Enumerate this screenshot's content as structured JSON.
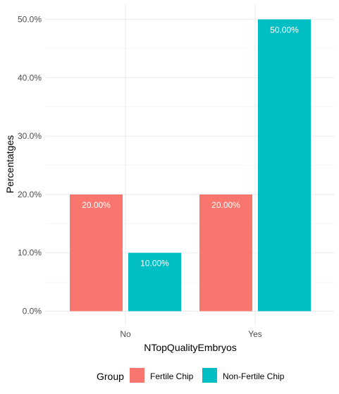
{
  "chart_data": {
    "type": "bar",
    "categories": [
      "No",
      "Yes"
    ],
    "series": [
      {
        "name": "Fertile Chip",
        "values": [
          20,
          20
        ],
        "labels": [
          "20.00%",
          "20.00%"
        ],
        "color": "#F8766D"
      },
      {
        "name": "Non-Fertile Chip",
        "values": [
          10,
          50
        ],
        "labels": [
          "10.00%",
          "50.00%"
        ],
        "color": "#00BFC4"
      }
    ],
    "xlabel": "NTopQualityEmbryos",
    "ylabel": "Percentatges",
    "ylim": [
      0,
      52.5
    ],
    "yticks": [
      0,
      10,
      20,
      30,
      40,
      50
    ],
    "ytick_labels": [
      "0.0%",
      "10.0%",
      "20.0%",
      "30.0%",
      "40.0%",
      "50.0%"
    ],
    "grid": true,
    "legend": {
      "title": "Group",
      "position": "bottom"
    }
  }
}
